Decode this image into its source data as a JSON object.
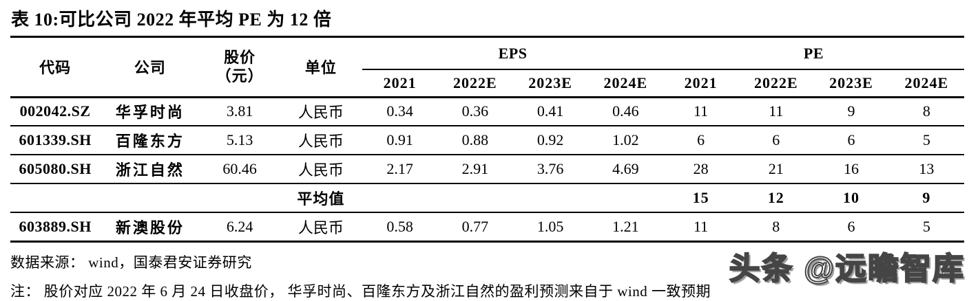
{
  "title": "表 10:可比公司 2022 年平均 PE 为 12 倍",
  "table": {
    "col_headers": {
      "code": "代码",
      "company": "公司",
      "price_line1": "股价",
      "price_line2": "（元）",
      "unit": "单位"
    },
    "group_headers": {
      "eps": "EPS",
      "pe": "PE"
    },
    "year_headers": [
      "2021",
      "2022E",
      "2023E",
      "2024E",
      "2021",
      "2022E",
      "2023E",
      "2024E"
    ],
    "rows": [
      {
        "code": "002042.SZ",
        "company": "华孚时尚",
        "price": "3.81",
        "unit": "人民币",
        "eps": [
          "0.34",
          "0.36",
          "0.41",
          "0.46"
        ],
        "pe": [
          "11",
          "11",
          "9",
          "8"
        ],
        "is_average": false
      },
      {
        "code": "601339.SH",
        "company": "百隆东方",
        "price": "5.13",
        "unit": "人民币",
        "eps": [
          "0.91",
          "0.88",
          "0.92",
          "1.02"
        ],
        "pe": [
          "6",
          "6",
          "6",
          "5"
        ],
        "is_average": false
      },
      {
        "code": "605080.SH",
        "company": "浙江自然",
        "price": "60.46",
        "unit": "人民币",
        "eps": [
          "2.17",
          "2.91",
          "3.76",
          "4.69"
        ],
        "pe": [
          "28",
          "21",
          "16",
          "13"
        ],
        "is_average": false
      },
      {
        "code": "",
        "company": "",
        "price": "",
        "unit": "平均值",
        "eps": [
          "",
          "",
          "",
          ""
        ],
        "pe": [
          "15",
          "12",
          "10",
          "9"
        ],
        "is_average": true
      },
      {
        "code": "603889.SH",
        "company": "新澳股份",
        "price": "6.24",
        "unit": "人民币",
        "eps": [
          "0.58",
          "0.77",
          "1.05",
          "1.21"
        ],
        "pe": [
          "11",
          "8",
          "6",
          "5"
        ],
        "is_average": false
      }
    ]
  },
  "footer": {
    "source": "数据来源： wind，国泰君安证券研究",
    "note": "注： 股价对应 2022 年 6 月 24 日收盘价， 华孚时尚、百隆东方及浙江自然的盈利预测来自于 wind 一致预期"
  },
  "watermark": "头条 @远瞻智库",
  "colors": {
    "text": "#000000",
    "background": "#ffffff",
    "rule": "#000000",
    "watermark_outline": "#454545"
  }
}
